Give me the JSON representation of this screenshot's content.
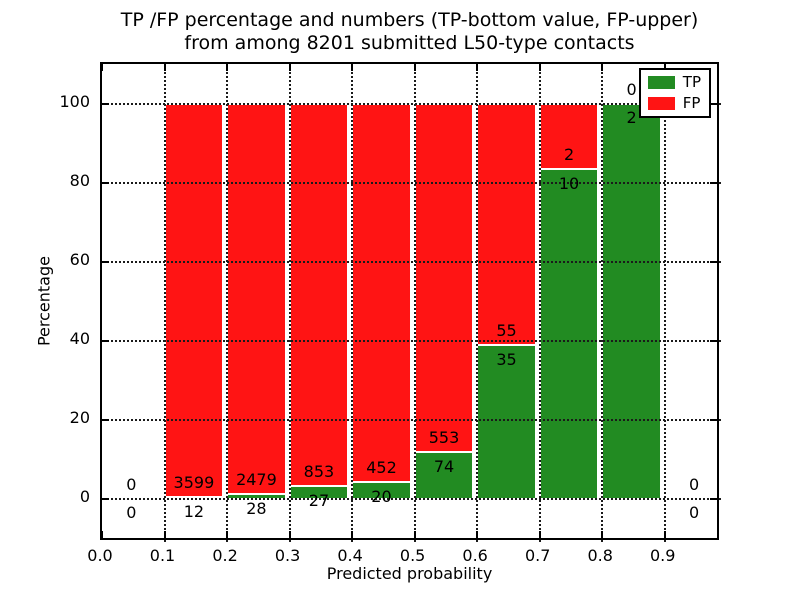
{
  "chart_data": {
    "type": "bar",
    "stacked": true,
    "normalized": "each bar totals 100%",
    "title_line1": "TP /FP percentage and numbers (TP-bottom value, FP-upper)",
    "title_line2": "from among 8201 submitted L50-type contacts",
    "xlabel": "Predicted probability",
    "ylabel": "Percentage",
    "xlim": [
      0.0,
      0.99
    ],
    "ylim": [
      -11,
      110
    ],
    "x_ticks": [
      0.0,
      0.1,
      0.2,
      0.3,
      0.4,
      0.5,
      0.6,
      0.7,
      0.8,
      0.9
    ],
    "x_tick_labels": [
      "0.0",
      "0.1",
      "0.2",
      "0.3",
      "0.4",
      "0.5",
      "0.6",
      "0.7",
      "0.8",
      "0.9"
    ],
    "y_ticks": [
      0,
      20,
      40,
      60,
      80,
      100
    ],
    "y_tick_labels": [
      "0",
      "20",
      "40",
      "60",
      "80",
      "100"
    ],
    "grid": "dotted, both axes, drawn above bars",
    "bar_width_units": 0.094,
    "legend": {
      "position": "upper right",
      "entries": [
        {
          "label": "TP",
          "color": "#228b22"
        },
        {
          "label": "FP",
          "color": "#ff1414"
        }
      ]
    },
    "series_note": "TP count drawn as green bottom segment, FP count as red upper segment; labels show raw counts (FP above boundary, TP below)",
    "bins": [
      {
        "x_start": 0.0,
        "x_end": 0.1,
        "tp": 0,
        "fp": 0,
        "bar": false
      },
      {
        "x_start": 0.1,
        "x_end": 0.2,
        "tp": 12,
        "fp": 3599,
        "bar": true
      },
      {
        "x_start": 0.2,
        "x_end": 0.3,
        "tp": 28,
        "fp": 2479,
        "bar": true
      },
      {
        "x_start": 0.3,
        "x_end": 0.4,
        "tp": 27,
        "fp": 853,
        "bar": true
      },
      {
        "x_start": 0.4,
        "x_end": 0.5,
        "tp": 20,
        "fp": 452,
        "bar": true
      },
      {
        "x_start": 0.5,
        "x_end": 0.6,
        "tp": 74,
        "fp": 553,
        "bar": true
      },
      {
        "x_start": 0.6,
        "x_end": 0.7,
        "tp": 35,
        "fp": 55,
        "bar": true
      },
      {
        "x_start": 0.7,
        "x_end": 0.8,
        "tp": 10,
        "fp": 2,
        "bar": true
      },
      {
        "x_start": 0.8,
        "x_end": 0.9,
        "tp": 2,
        "fp": 0,
        "bar": true
      },
      {
        "x_start": 0.9,
        "x_end": 1.0,
        "tp": 0,
        "fp": 0,
        "bar": false
      }
    ],
    "colors": {
      "tp": "#228b22",
      "fp": "#ff1414",
      "bar_edge": "#ffffff",
      "grid": "#1a1a1a",
      "spine": "#000000",
      "background": "#ffffff"
    }
  }
}
